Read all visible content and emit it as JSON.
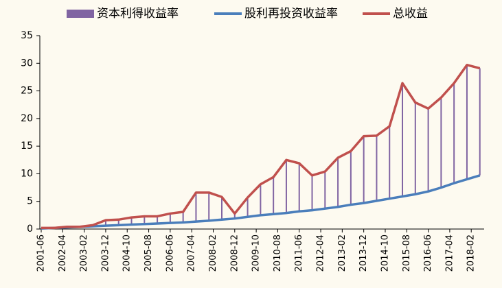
{
  "chart_data": {
    "type": "stacked-bar-line",
    "x": [
      "2001-06",
      "2001-12",
      "2002-06",
      "2002-12",
      "2003-06",
      "2003-12",
      "2004-06",
      "2004-12",
      "2005-06",
      "2005-12",
      "2006-06",
      "2006-12",
      "2007-06",
      "2007-12",
      "2008-06",
      "2008-12",
      "2009-06",
      "2009-12",
      "2010-06",
      "2010-12",
      "2011-06",
      "2011-12",
      "2012-06",
      "2012-12",
      "2013-06",
      "2013-12",
      "2014-06",
      "2014-12",
      "2015-06",
      "2015-12",
      "2016-06",
      "2016-12",
      "2017-06",
      "2017-12",
      "2018-06"
    ],
    "series": [
      {
        "name": "股利再投资收益率",
        "color": "#4a7ebb",
        "kind": "line",
        "values": [
          0.1,
          0.2,
          0.3,
          0.4,
          0.5,
          0.6,
          0.7,
          0.8,
          0.9,
          1.0,
          1.1,
          1.2,
          1.35,
          1.5,
          1.7,
          1.9,
          2.2,
          2.5,
          2.7,
          2.9,
          3.2,
          3.4,
          3.7,
          4.0,
          4.4,
          4.7,
          5.1,
          5.5,
          5.9,
          6.3,
          6.8,
          7.5,
          8.3,
          9.0,
          9.7
        ]
      },
      {
        "name": "资本利得收益率",
        "color": "#8064a2",
        "kind": "bar",
        "stacked_on": 0,
        "values": [
          0.1,
          0,
          0.1,
          0,
          0.2,
          1.0,
          1.0,
          1.3,
          1.4,
          1.3,
          1.7,
          1.9,
          5.25,
          5.1,
          4.1,
          0.9,
          3.5,
          5.6,
          6.7,
          9.6,
          8.7,
          6.3,
          6.7,
          8.9,
          9.7,
          12.1,
          11.8,
          13.1,
          20.5,
          16.6,
          15.0,
          16.3,
          18.1,
          20.7,
          19.4
        ]
      },
      {
        "name": "总收益",
        "color": "#c0504d",
        "kind": "line",
        "values": [
          0.2,
          0.2,
          0.4,
          0.4,
          0.7,
          1.6,
          1.7,
          2.1,
          2.3,
          2.3,
          2.8,
          3.1,
          6.6,
          6.6,
          5.8,
          2.8,
          5.7,
          8.1,
          9.4,
          12.5,
          11.9,
          9.7,
          10.4,
          12.9,
          14.1,
          16.8,
          16.9,
          18.6,
          26.4,
          22.9,
          21.8,
          23.8,
          26.4,
          29.7,
          29.1
        ]
      }
    ],
    "xlim": [
      "2001-06",
      "2018-08"
    ],
    "xticks": [
      "2001-06",
      "2002-04",
      "2003-02",
      "2003-12",
      "2004-10",
      "2005-08",
      "2006-06",
      "2007-04",
      "2008-02",
      "2008-12",
      "2009-10",
      "2010-08",
      "2011-06",
      "2012-04",
      "2013-02",
      "2013-12",
      "2014-10",
      "2015-08",
      "2016-06",
      "2017-04",
      "2018-02"
    ],
    "ylim": [
      0,
      35
    ],
    "yticks": [
      0,
      5,
      10,
      15,
      20,
      25,
      30,
      35
    ],
    "grid": false,
    "legend": "top"
  }
}
